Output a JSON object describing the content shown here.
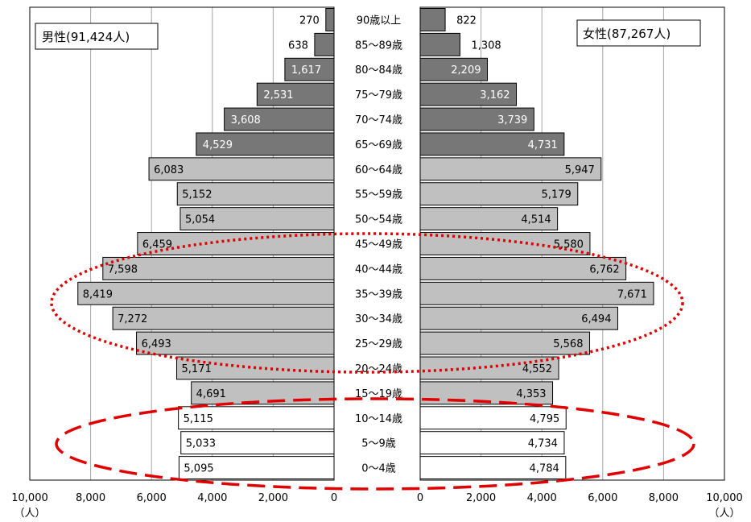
{
  "chart_data": {
    "type": "bar",
    "orientation": "horizontal-pyramid",
    "categories": [
      "90歳以上",
      "85～89歳",
      "80～84歳",
      "75～79歳",
      "70～74歳",
      "65～69歳",
      "60～64歳",
      "55～59歳",
      "50～54歳",
      "45～49歳",
      "40～44歳",
      "35～39歳",
      "30～34歳",
      "25～29歳",
      "20～24歳",
      "15～19歳",
      "10～14歳",
      "5～9歳",
      "0～4歳"
    ],
    "series": [
      {
        "name": "男性(91,424人)",
        "side": "left",
        "values": [
          270,
          638,
          1617,
          2531,
          3608,
          4529,
          6083,
          5152,
          5054,
          6459,
          7598,
          8419,
          7272,
          6493,
          5171,
          4691,
          5115,
          5033,
          5095
        ]
      },
      {
        "name": "女性(87,267人)",
        "side": "right",
        "values": [
          822,
          1308,
          2209,
          3162,
          3739,
          4731,
          5947,
          5179,
          4514,
          5580,
          6762,
          7671,
          6494,
          5568,
          4552,
          4353,
          4795,
          4734,
          4784
        ]
      }
    ],
    "value_labels": {
      "male": [
        "270",
        "638",
        "1,617",
        "2,531",
        "3,608",
        "4,529",
        "6,083",
        "5,152",
        "5,054",
        "6,459",
        "7,598",
        "8,419",
        "7,272",
        "6,493",
        "5,171",
        "4,691",
        "5,115",
        "5,033",
        "5,095"
      ],
      "female": [
        "822",
        "1,308",
        "2,209",
        "3,162",
        "3,739",
        "4,731",
        "5,947",
        "5,179",
        "4,514",
        "5,580",
        "6,762",
        "7,671",
        "6,494",
        "5,568",
        "4,552",
        "4,353",
        "4,795",
        "4,734",
        "4,784"
      ]
    },
    "age_groups": {
      "elderly_count": 6,
      "working_count": 10,
      "child_count": 3
    },
    "colors": {
      "elderly": "#777777",
      "working": "#c0c0c0",
      "child": "#ffffff",
      "highlight_dotted": "#e00000",
      "highlight_dashed": "#e00000"
    },
    "xlim": [
      0,
      10000
    ],
    "left_ticks": [
      "10,000",
      "8,000",
      "6,000",
      "4,000",
      "2,000",
      "0"
    ],
    "right_ticks": [
      "0",
      "2,000",
      "4,000",
      "6,000",
      "8,000",
      "10,000"
    ],
    "tick_values": [
      10000,
      8000,
      6000,
      4000,
      2000,
      0
    ],
    "unit": "（人）",
    "grid": true,
    "legend": {
      "left": "男性(91,424人)",
      "right": "女性(87,267人)"
    }
  }
}
